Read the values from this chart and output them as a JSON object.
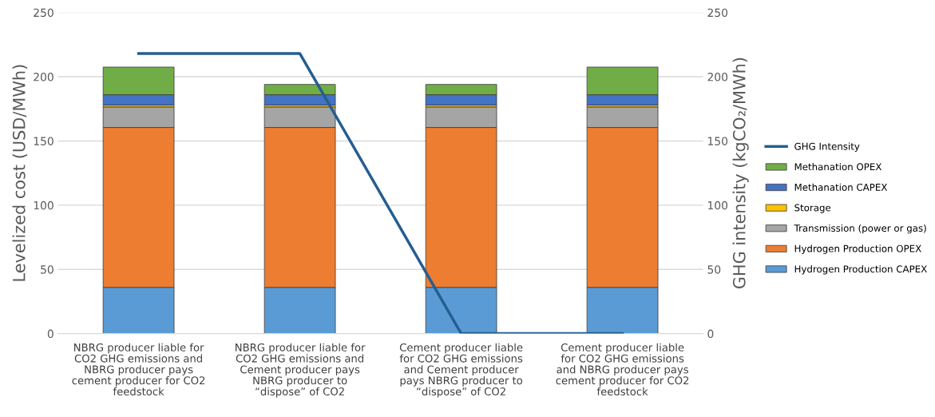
{
  "chart_data": {
    "type": "bar",
    "stacked": true,
    "ylabel": "Levelized cost (USD/MWh)",
    "y2label": "GHG intensity (kgCO₂/MWh)",
    "categories": [
      "NBRG producer liable for CO2 GHG emissions and NBRG producer pays cement producer for CO2 feedstock",
      "NBRG producer liable for CO2 GHG emissions and Cement producer pays NBRG producer to “dispose” of CO2",
      "Cement producer liable for CO2 GHG emissions and Cement producer pays NBRG producer to “dispose” of CO2",
      "Cement producer liable for CO2 GHG emissions and NBRG producer pays cement producer for CO2 feedstock"
    ],
    "series": [
      {
        "name": "Hydrogen Production CAPEX",
        "color": "#5b9bd5",
        "values": [
          36,
          36,
          36,
          36
        ]
      },
      {
        "name": "Hydrogen Production OPEX",
        "color": "#ed7d31",
        "values": [
          124.5,
          124.5,
          124.5,
          124.5
        ]
      },
      {
        "name": "Transmission (power or gas)",
        "color": "#a5a5a5",
        "values": [
          16,
          16,
          16,
          16
        ]
      },
      {
        "name": "Storage",
        "color": "#ffc000",
        "values": [
          1.5,
          1.5,
          1.5,
          1.5
        ]
      },
      {
        "name": "Methanation CAPEX",
        "color": "#4472c4",
        "values": [
          8,
          8,
          8,
          8
        ]
      },
      {
        "name": "Methanation OPEX",
        "color": "#70ad47",
        "values": [
          21.5,
          8,
          8,
          21.5
        ]
      },
      {
        "name": "GHG Intensity",
        "type": "line",
        "color": "#255e91",
        "values": [
          218,
          218,
          0,
          0
        ]
      }
    ],
    "ylim": [
      0,
      250
    ],
    "yticks": [
      0,
      50,
      100,
      150,
      200,
      250
    ],
    "y2lim": [
      0,
      250
    ],
    "y2ticks": [
      0,
      50,
      100,
      150,
      200,
      250
    ],
    "grid": "y",
    "legend": "right",
    "marker": "none",
    "line_style": "solid"
  }
}
